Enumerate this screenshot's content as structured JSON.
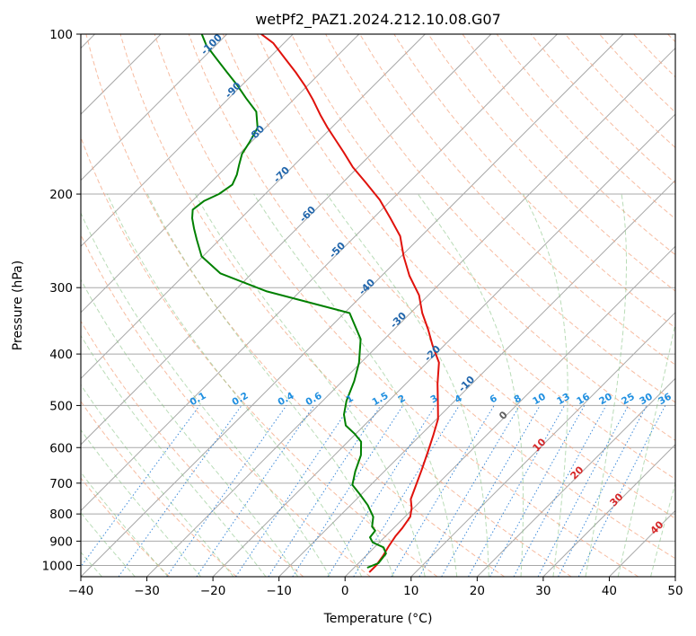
{
  "chart_data": {
    "type": "skew-t",
    "title": "wetPf2_PAZ1.2024.212.10.08.G07",
    "xlabel": "Temperature (°C)",
    "ylabel": "Pressure (hPa)",
    "xlim": [
      -40,
      50
    ],
    "ylim": [
      1050,
      100
    ],
    "y_scale": "log",
    "grid": true,
    "x_ticks": [
      "−40",
      "−30",
      "−20",
      "−10",
      "0",
      "10",
      "20",
      "30",
      "40",
      "50"
    ],
    "y_ticks": [
      "100",
      "200",
      "300",
      "400",
      "500",
      "600",
      "700",
      "800",
      "900",
      "1000"
    ],
    "isotherm_labels": [
      "-100",
      "-90",
      "-80",
      "-70",
      "-60",
      "-50",
      "-40",
      "-30",
      "-20",
      "-10"
    ],
    "mixing_ratio_labels": [
      "0.1",
      "0.2",
      "0.4",
      "0.6",
      "1",
      "1.5",
      "2",
      "3",
      "4",
      "6",
      "8",
      "10",
      "13",
      "16",
      "20",
      "25",
      "30",
      "36"
    ],
    "moist_adiabat_labels": [
      "0",
      "10",
      "20",
      "30",
      "40"
    ],
    "series": [
      {
        "color": "#e0120c",
        "points": [
          [
            3.0,
            1030
          ],
          [
            3.0,
            1000
          ],
          [
            2.6,
            960
          ],
          [
            2.0,
            920
          ],
          [
            1.5,
            880
          ],
          [
            1.3,
            850
          ],
          [
            0.8,
            810
          ],
          [
            -0.3,
            780
          ],
          [
            -1.8,
            750
          ],
          [
            -3.0,
            710
          ],
          [
            -4.6,
            660
          ],
          [
            -6.4,
            610
          ],
          [
            -8.0,
            570
          ],
          [
            -9.8,
            530
          ],
          [
            -12.2,
            495
          ],
          [
            -15.2,
            455
          ],
          [
            -18.2,
            415
          ],
          [
            -21.8,
            385
          ],
          [
            -24.8,
            360
          ],
          [
            -28.2,
            335
          ],
          [
            -31.4,
            310
          ],
          [
            -35.8,
            285
          ],
          [
            -39.6,
            262
          ],
          [
            -43.2,
            240
          ],
          [
            -47.4,
            222
          ],
          [
            -51.8,
            205
          ],
          [
            -56.6,
            190
          ],
          [
            -60.8,
            178
          ],
          [
            -64.4,
            167
          ],
          [
            -67.6,
            158
          ],
          [
            -70.6,
            150
          ],
          [
            -73.6,
            142
          ],
          [
            -77.0,
            133
          ],
          [
            -80.4,
            125
          ],
          [
            -83.8,
            118
          ],
          [
            -87.6,
            111
          ],
          [
            -91.6,
            104
          ],
          [
            -94.8,
            100
          ]
        ]
      },
      {
        "color": "#008000",
        "points": [
          [
            2.0,
            1010
          ],
          [
            3.0,
            990
          ],
          [
            2.7,
            950
          ],
          [
            1.4,
            925
          ],
          [
            -1.0,
            905
          ],
          [
            -2.2,
            885
          ],
          [
            -2.4,
            860
          ],
          [
            -3.5,
            845
          ],
          [
            -4.8,
            810
          ],
          [
            -7.4,
            770
          ],
          [
            -10.2,
            735
          ],
          [
            -12.8,
            705
          ],
          [
            -14.4,
            665
          ],
          [
            -16.0,
            620
          ],
          [
            -18.0,
            585
          ],
          [
            -20.2,
            565
          ],
          [
            -22.8,
            545
          ],
          [
            -24.7,
            520
          ],
          [
            -26.4,
            490
          ],
          [
            -28.2,
            450
          ],
          [
            -30.3,
            415
          ],
          [
            -33.6,
            375
          ],
          [
            -39.2,
            335
          ],
          [
            -55.0,
            305
          ],
          [
            -64.8,
            282
          ],
          [
            -70.2,
            262
          ],
          [
            -73.4,
            244
          ],
          [
            -75.6,
            232
          ],
          [
            -77.4,
            222
          ],
          [
            -78.6,
            214
          ],
          [
            -78.2,
            206
          ],
          [
            -77.0,
            200
          ],
          [
            -76.4,
            192
          ],
          [
            -77.2,
            184
          ],
          [
            -78.4,
            176
          ],
          [
            -79.6,
            168
          ],
          [
            -80.2,
            160
          ],
          [
            -81.2,
            150
          ],
          [
            -83.8,
            140
          ],
          [
            -87.4,
            132
          ],
          [
            -90.6,
            125
          ],
          [
            -94.2,
            118
          ],
          [
            -98.0,
            111
          ],
          [
            -101.4,
            105
          ],
          [
            -103.8,
            100
          ]
        ]
      }
    ]
  }
}
